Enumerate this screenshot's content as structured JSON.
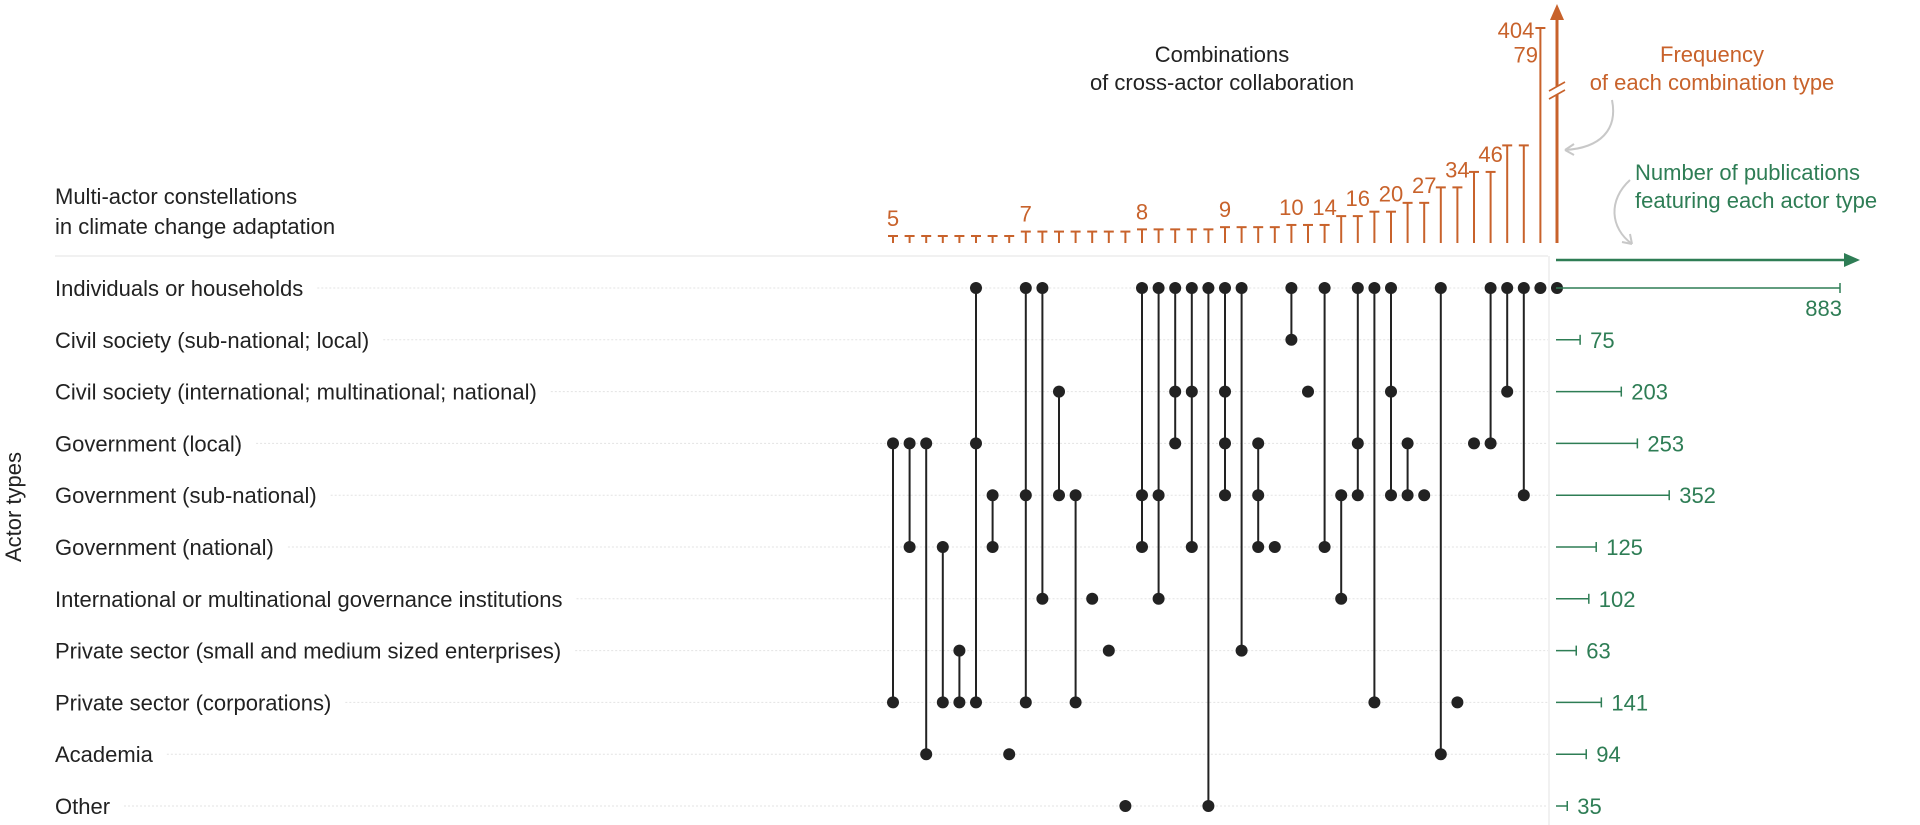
{
  "chart_data": {
    "type": "upset",
    "title": "Multi-actor constellations in climate change adaptation",
    "title_lines": [
      "Multi-actor constellations",
      "in climate change adaptation"
    ],
    "top_label_lines": [
      "Combinations",
      "of cross-actor collaboration"
    ],
    "frequency_label_lines": [
      "Frequency",
      "of each combination type"
    ],
    "publications_label_lines": [
      "Number of publications",
      "featuring each actor type"
    ],
    "ylabel": "Actor types",
    "colors": {
      "frequency": "#c8622b",
      "publications": "#2e7d55",
      "dot": "#222222"
    },
    "actor_types": [
      "Individuals or households",
      "Civil society (sub-national; local)",
      "Civil society (international; multinational; national)",
      "Government (local)",
      "Government (sub-national)",
      "Government (national)",
      "International or multinational governance institutions",
      "Private sector (small and medium sized enterprises)",
      "Private sector (corporations)",
      "Academia",
      "Other"
    ],
    "publications": [
      883,
      75,
      203,
      253,
      352,
      125,
      102,
      63,
      141,
      94,
      35
    ],
    "combinations": [
      {
        "frequency": 5,
        "members": [
          3,
          8
        ]
      },
      {
        "frequency": 5,
        "members": [
          3,
          5
        ]
      },
      {
        "frequency": 5,
        "members": [
          3,
          9
        ]
      },
      {
        "frequency": 5,
        "members": [
          5,
          8
        ]
      },
      {
        "frequency": 5,
        "members": [
          7,
          8
        ]
      },
      {
        "frequency": 5,
        "members": [
          0,
          3,
          8
        ]
      },
      {
        "frequency": 5,
        "members": [
          4,
          5
        ]
      },
      {
        "frequency": 5,
        "members": [
          9
        ]
      },
      {
        "frequency": 7,
        "members": [
          0,
          4,
          8
        ]
      },
      {
        "frequency": 7,
        "members": [
          0,
          6
        ]
      },
      {
        "frequency": 7,
        "members": [
          2,
          4
        ]
      },
      {
        "frequency": 7,
        "members": [
          4,
          8
        ]
      },
      {
        "frequency": 7,
        "members": [
          6
        ]
      },
      {
        "frequency": 7,
        "members": [
          7
        ]
      },
      {
        "frequency": 7,
        "members": [
          10
        ]
      },
      {
        "frequency": 8,
        "members": [
          0,
          4,
          5
        ]
      },
      {
        "frequency": 8,
        "members": [
          0,
          4,
          6
        ]
      },
      {
        "frequency": 8,
        "members": [
          0,
          2,
          3
        ]
      },
      {
        "frequency": 8,
        "members": [
          0,
          2,
          5
        ]
      },
      {
        "frequency": 8,
        "members": [
          0,
          10
        ]
      },
      {
        "frequency": 9,
        "members": [
          0,
          2,
          3,
          4
        ]
      },
      {
        "frequency": 9,
        "members": [
          0,
          7
        ]
      },
      {
        "frequency": 9,
        "members": [
          3,
          4,
          5
        ]
      },
      {
        "frequency": 9,
        "members": [
          5
        ]
      },
      {
        "frequency": 10,
        "members": [
          0,
          1
        ]
      },
      {
        "frequency": 10,
        "members": [
          2
        ]
      },
      {
        "frequency": 10,
        "members": [
          0,
          5
        ]
      },
      {
        "frequency": 14,
        "members": [
          4,
          6
        ]
      },
      {
        "frequency": 14,
        "members": [
          0,
          3,
          4
        ]
      },
      {
        "frequency": 16,
        "members": [
          0,
          8
        ]
      },
      {
        "frequency": 16,
        "members": [
          0,
          2,
          4
        ]
      },
      {
        "frequency": 20,
        "members": [
          3,
          4
        ]
      },
      {
        "frequency": 20,
        "members": [
          4
        ]
      },
      {
        "frequency": 27,
        "members": [
          0,
          9
        ]
      },
      {
        "frequency": 27,
        "members": [
          8
        ]
      },
      {
        "frequency": 34,
        "members": [
          3
        ]
      },
      {
        "frequency": 34,
        "members": [
          0,
          3
        ]
      },
      {
        "frequency": 46,
        "members": [
          0,
          2
        ]
      },
      {
        "frequency": 46,
        "members": [
          0,
          4
        ]
      },
      {
        "frequency": 79,
        "members": [
          0
        ]
      },
      {
        "frequency": 404,
        "members": [
          0
        ]
      }
    ],
    "frequency_labels": [
      {
        "index": 0,
        "text": "5"
      },
      {
        "index": 8,
        "text": "7"
      },
      {
        "index": 15,
        "text": "8"
      },
      {
        "index": 20,
        "text": "9"
      },
      {
        "index": 24,
        "text": "10"
      },
      {
        "index": 26,
        "text": "14"
      },
      {
        "index": 28,
        "text": "16"
      },
      {
        "index": 30,
        "text": "20"
      },
      {
        "index": 32,
        "text": "27"
      },
      {
        "index": 34,
        "text": "34"
      },
      {
        "index": 36,
        "text": "46"
      },
      {
        "index": 38,
        "text": "79"
      },
      {
        "index": 40,
        "text": "404"
      }
    ],
    "frequency_axis_break": true,
    "publications_max": 883
  }
}
